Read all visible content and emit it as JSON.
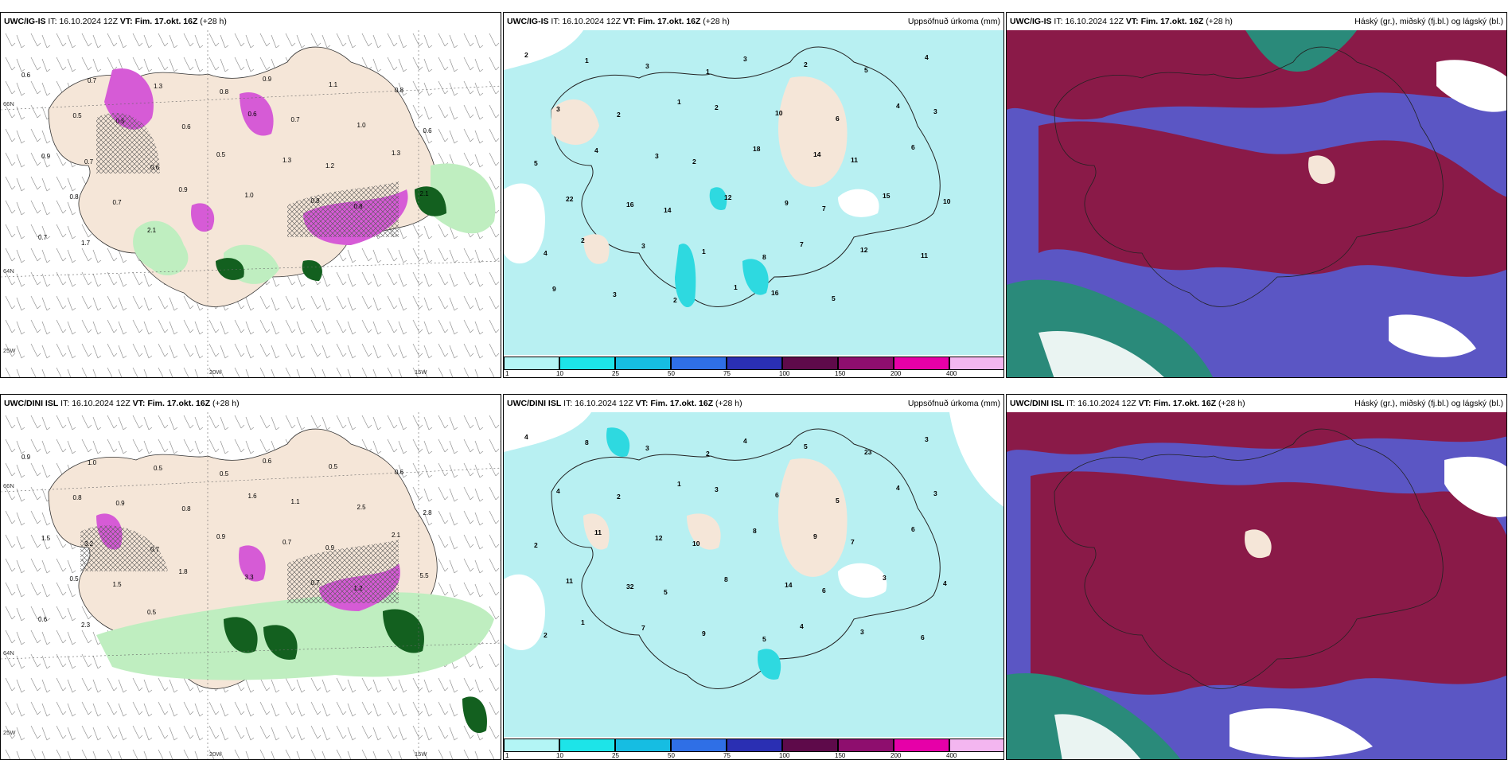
{
  "panels": {
    "p0": {
      "model": "UWC/IG-IS",
      "it_label": "IT:",
      "it_value": "16.10.2024 12Z",
      "vt_label": "VT:",
      "vt_value": "Fim. 17.okt. 16Z",
      "lead": "(+28 h)",
      "right_title": ""
    },
    "p1": {
      "model": "UWC/IG-IS",
      "it_label": "IT:",
      "it_value": "16.10.2024 12Z",
      "vt_label": "VT:",
      "vt_value": "Fim. 17.okt. 16Z",
      "lead": "(+28 h)",
      "right_title": "Uppsöfnuð úrkoma (mm)"
    },
    "p2": {
      "model": "UWC/IG-IS",
      "it_label": "IT:",
      "it_value": "16.10.2024 12Z",
      "vt_label": "VT:",
      "vt_value": "Fim. 17.okt. 16Z",
      "lead": "(+28 h)",
      "right_title": "Háský (gr.), miðský (fj.bl.) og lágský (bl.)"
    },
    "p3": {
      "model": "UWC/DINI ISL",
      "it_label": "IT:",
      "it_value": "16.10.2024 12Z",
      "vt_label": "VT:",
      "vt_value": "Fim. 17.okt. 16Z",
      "lead": "(+28 h)",
      "right_title": ""
    },
    "p4": {
      "model": "UWC/DINI ISL",
      "it_label": "IT:",
      "it_value": "16.10.2024 12Z",
      "vt_label": "VT:",
      "vt_value": "Fim. 17.okt. 16Z",
      "lead": "(+28 h)",
      "right_title": "Uppsöfnuð úrkoma (mm)"
    },
    "p5": {
      "model": "UWC/DINI ISL",
      "it_label": "IT:",
      "it_value": "16.10.2024 12Z",
      "vt_label": "VT:",
      "vt_value": "Fim. 17.okt. 16Z",
      "lead": "(+28 h)",
      "right_title": "Háský (gr.), miðský (fj.bl.) og lágský (bl.)"
    }
  },
  "axes": {
    "lon_20w": "20W",
    "lon_15w": "15W",
    "lon_25w": "25W",
    "lat_66n": "66N",
    "lat_64n": "64N"
  },
  "colorbar": {
    "ticks": [
      "1",
      "10",
      "25",
      "50",
      "75",
      "100",
      "150",
      "200",
      "400"
    ],
    "colors": [
      "#b3f5f5",
      "#1de4e8",
      "#16bde2",
      "#2f6fe6",
      "#2a2fb3",
      "#5e0a4a",
      "#8e0e6e",
      "#e600a8",
      "#f3b6f0"
    ]
  },
  "colors": {
    "land": "#f5e6d8",
    "precip_light": "#b8f0f2",
    "precip_mid": "#2ed9e0",
    "cloud_high": "#8a1a48",
    "cloud_mid": "#5b56c4",
    "cloud_low": "#2a8a7a",
    "green_light": "#bfeec0",
    "green_dark": "#13601f",
    "magenta": "#d65bd6"
  },
  "precip_map": {
    "p0": [
      {
        "v": "0.6"
      },
      {
        "v": "0.7"
      },
      {
        "v": "1.3"
      },
      {
        "v": "0.8"
      },
      {
        "v": "0.9"
      },
      {
        "v": "1.1"
      },
      {
        "v": "0.8"
      },
      {
        "v": "0.5"
      },
      {
        "v": "0.5"
      },
      {
        "v": "0.6"
      },
      {
        "v": "0.6"
      },
      {
        "v": "0.7"
      },
      {
        "v": "1.0"
      },
      {
        "v": "0.6"
      },
      {
        "v": "0.9"
      },
      {
        "v": "0.7"
      },
      {
        "v": "0.6"
      },
      {
        "v": "0.5"
      },
      {
        "v": "1.3"
      },
      {
        "v": "1.2"
      },
      {
        "v": "1.3"
      },
      {
        "v": "0.8"
      },
      {
        "v": "0.7"
      },
      {
        "v": "0.9"
      },
      {
        "v": "1.0"
      },
      {
        "v": "0.8"
      },
      {
        "v": "0.8"
      },
      {
        "v": "2.1"
      },
      {
        "v": "0.7"
      },
      {
        "v": "1.7"
      },
      {
        "v": "2.1"
      }
    ],
    "p3": [
      {
        "v": "0.9"
      },
      {
        "v": "1.0"
      },
      {
        "v": "0.5"
      },
      {
        "v": "0.5"
      },
      {
        "v": "0.6"
      },
      {
        "v": "0.5"
      },
      {
        "v": "0.6"
      },
      {
        "v": "0.8"
      },
      {
        "v": "0.9"
      },
      {
        "v": "0.8"
      },
      {
        "v": "1.6"
      },
      {
        "v": "1.1"
      },
      {
        "v": "2.5"
      },
      {
        "v": "2.8"
      },
      {
        "v": "1.5"
      },
      {
        "v": "3.2"
      },
      {
        "v": "0.7"
      },
      {
        "v": "0.9"
      },
      {
        "v": "0.7"
      },
      {
        "v": "0.9"
      },
      {
        "v": "2.1"
      },
      {
        "v": "0.5"
      },
      {
        "v": "1.5"
      },
      {
        "v": "1.8"
      },
      {
        "v": "3.3"
      },
      {
        "v": "0.7"
      },
      {
        "v": "1.2"
      },
      {
        "v": "5.5"
      },
      {
        "v": "0.6"
      },
      {
        "v": "2.3"
      },
      {
        "v": "0.5"
      }
    ],
    "p1": [
      {
        "v": "2"
      },
      {
        "v": "1"
      },
      {
        "v": "3"
      },
      {
        "v": "1"
      },
      {
        "v": "3"
      },
      {
        "v": "2"
      },
      {
        "v": "5"
      },
      {
        "v": "4"
      },
      {
        "v": "3"
      },
      {
        "v": "2"
      },
      {
        "v": "1"
      },
      {
        "v": "2"
      },
      {
        "v": "10"
      },
      {
        "v": "6"
      },
      {
        "v": "4"
      },
      {
        "v": "3"
      },
      {
        "v": "5"
      },
      {
        "v": "4"
      },
      {
        "v": "3"
      },
      {
        "v": "2"
      },
      {
        "v": "18"
      },
      {
        "v": "14"
      },
      {
        "v": "11"
      },
      {
        "v": "6"
      },
      {
        "v": "22"
      },
      {
        "v": "16"
      },
      {
        "v": "14"
      },
      {
        "v": "12"
      },
      {
        "v": "9"
      },
      {
        "v": "7"
      },
      {
        "v": "15"
      },
      {
        "v": "10"
      },
      {
        "v": "4"
      },
      {
        "v": "2"
      },
      {
        "v": "3"
      },
      {
        "v": "1"
      },
      {
        "v": "8"
      },
      {
        "v": "7"
      },
      {
        "v": "12"
      },
      {
        "v": "11"
      },
      {
        "v": "9"
      },
      {
        "v": "3"
      },
      {
        "v": "2"
      },
      {
        "v": "1"
      },
      {
        "v": "16"
      },
      {
        "v": "5"
      }
    ],
    "p4": [
      {
        "v": "4"
      },
      {
        "v": "8"
      },
      {
        "v": "3"
      },
      {
        "v": "2"
      },
      {
        "v": "4"
      },
      {
        "v": "5"
      },
      {
        "v": "23"
      },
      {
        "v": "3"
      },
      {
        "v": "4"
      },
      {
        "v": "2"
      },
      {
        "v": "1"
      },
      {
        "v": "3"
      },
      {
        "v": "6"
      },
      {
        "v": "5"
      },
      {
        "v": "4"
      },
      {
        "v": "3"
      },
      {
        "v": "2"
      },
      {
        "v": "11"
      },
      {
        "v": "12"
      },
      {
        "v": "10"
      },
      {
        "v": "8"
      },
      {
        "v": "9"
      },
      {
        "v": "7"
      },
      {
        "v": "6"
      },
      {
        "v": "11"
      },
      {
        "v": "32"
      },
      {
        "v": "5"
      },
      {
        "v": "8"
      },
      {
        "v": "14"
      },
      {
        "v": "6"
      },
      {
        "v": "3"
      },
      {
        "v": "4"
      },
      {
        "v": "2"
      },
      {
        "v": "1"
      },
      {
        "v": "7"
      },
      {
        "v": "9"
      },
      {
        "v": "5"
      },
      {
        "v": "4"
      },
      {
        "v": "3"
      },
      {
        "v": "6"
      }
    ]
  }
}
